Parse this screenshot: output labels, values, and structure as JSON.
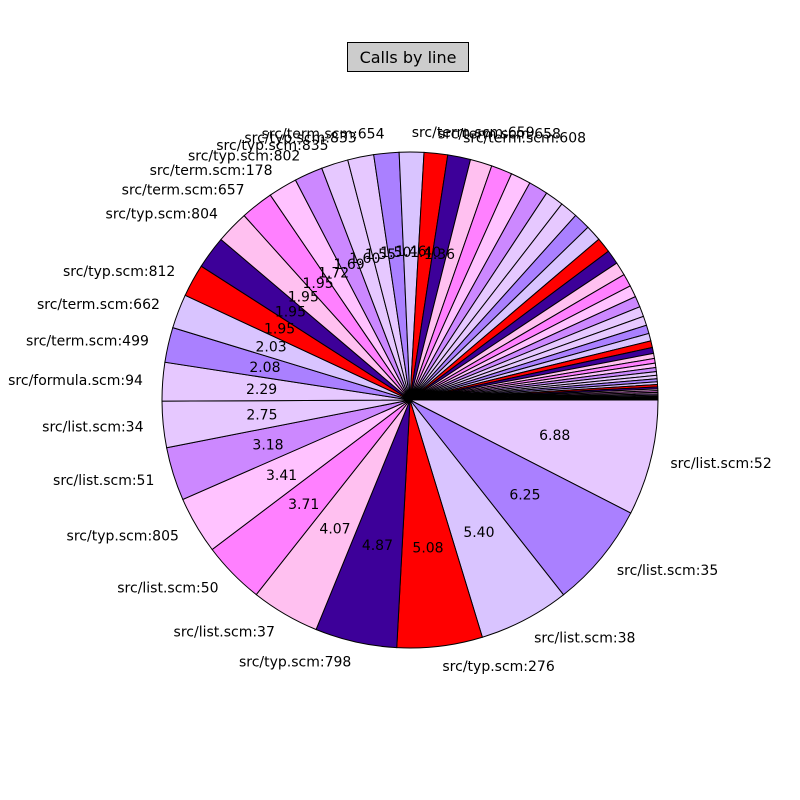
{
  "title": "Calls by line",
  "chart_data": {
    "type": "pie",
    "title": "Calls by line",
    "start_angle_deg": 0,
    "direction": "clockwise",
    "colors": [
      "#e6c8ff",
      "#aa80ff",
      "#d9c4ff",
      "#ff0000",
      "#3d0099",
      "#ffc0f0",
      "#ff80ff",
      "#ffc2ff",
      "#cc88ff",
      "#e6c8ff"
    ],
    "slices": [
      {
        "label": "src/list.scm:52",
        "value": 6.88,
        "value_label": "6.88"
      },
      {
        "label": "src/list.scm:35",
        "value": 6.25,
        "value_label": "6.25"
      },
      {
        "label": "src/list.scm:38",
        "value": 5.4,
        "value_label": "5.40"
      },
      {
        "label": "src/typ.scm:276",
        "value": 5.08,
        "value_label": "5.08"
      },
      {
        "label": "src/typ.scm:798",
        "value": 4.87,
        "value_label": "4.87"
      },
      {
        "label": "src/list.scm:37",
        "value": 4.07,
        "value_label": "4.07"
      },
      {
        "label": "src/list.scm:50",
        "value": 3.71,
        "value_label": "3.71"
      },
      {
        "label": "src/typ.scm:805",
        "value": 3.41,
        "value_label": "3.41"
      },
      {
        "label": "src/list.scm:51",
        "value": 3.18,
        "value_label": "3.18"
      },
      {
        "label": "src/list.scm:34",
        "value": 2.75,
        "value_label": "2.75"
      },
      {
        "label": "src/formula.scm:94",
        "value": 2.29,
        "value_label": "2.29"
      },
      {
        "label": "src/term.scm:499",
        "value": 2.08,
        "value_label": "2.08"
      },
      {
        "label": "src/term.scm:662",
        "value": 2.03,
        "value_label": "2.03"
      },
      {
        "label": "src/typ.scm:812",
        "value": 1.95,
        "value_label": "1.95"
      },
      {
        "label": "",
        "value": 1.95,
        "value_label": "1.95"
      },
      {
        "label": "src/typ.scm:804",
        "value": 1.95,
        "value_label": "1.95"
      },
      {
        "label": "src/term.scm:657",
        "value": 1.95,
        "value_label": "1.95"
      },
      {
        "label": "src/term.scm:178",
        "value": 1.72,
        "value_label": "1.72"
      },
      {
        "label": "src/typ.scm:802",
        "value": 1.69,
        "value_label": "1.69"
      },
      {
        "label": "src/typ.scm:835",
        "value": 1.6,
        "value_label": "1.60"
      },
      {
        "label": "src/typ.scm:833",
        "value": 1.55,
        "value_label": "1.55"
      },
      {
        "label": "src/term.scm:654",
        "value": 1.5,
        "value_label": "1.50"
      },
      {
        "label": "src/term.scm:659",
        "value": 1.46,
        "value_label": "1.46"
      },
      {
        "label": "src/term.scm:658",
        "value": 1.4,
        "value_label": "1.40"
      },
      {
        "label": "src/term.scm:608",
        "value": 1.36,
        "value_label": "1.36"
      },
      {
        "label": "",
        "value": 1.3,
        "value_label": ""
      },
      {
        "label": "",
        "value": 1.25,
        "value_label": ""
      },
      {
        "label": "",
        "value": 1.2,
        "value_label": ""
      },
      {
        "label": "",
        "value": 1.15,
        "value_label": ""
      },
      {
        "label": "",
        "value": 1.1,
        "value_label": ""
      },
      {
        "label": "",
        "value": 1.05,
        "value_label": ""
      },
      {
        "label": "",
        "value": 1.0,
        "value_label": ""
      },
      {
        "label": "",
        "value": 0.95,
        "value_label": ""
      },
      {
        "label": "",
        "value": 0.9,
        "value_label": ""
      },
      {
        "label": "",
        "value": 0.85,
        "value_label": ""
      },
      {
        "label": "",
        "value": 0.8,
        "value_label": ""
      },
      {
        "label": "",
        "value": 0.75,
        "value_label": ""
      },
      {
        "label": "",
        "value": 0.7,
        "value_label": ""
      },
      {
        "label": "",
        "value": 0.65,
        "value_label": ""
      },
      {
        "label": "",
        "value": 0.6,
        "value_label": ""
      },
      {
        "label": "",
        "value": 0.55,
        "value_label": ""
      },
      {
        "label": "",
        "value": 0.5,
        "value_label": ""
      },
      {
        "label": "",
        "value": 0.45,
        "value_label": ""
      },
      {
        "label": "",
        "value": 0.4,
        "value_label": ""
      },
      {
        "label": "",
        "value": 0.35,
        "value_label": ""
      },
      {
        "label": "",
        "value": 0.3,
        "value_label": ""
      },
      {
        "label": "",
        "value": 0.28,
        "value_label": ""
      },
      {
        "label": "",
        "value": 0.26,
        "value_label": ""
      },
      {
        "label": "",
        "value": 0.24,
        "value_label": ""
      },
      {
        "label": "",
        "value": 0.22,
        "value_label": ""
      },
      {
        "label": "",
        "value": 0.2,
        "value_label": ""
      },
      {
        "label": "",
        "value": 0.18,
        "value_label": ""
      },
      {
        "label": "",
        "value": 0.16,
        "value_label": ""
      },
      {
        "label": "",
        "value": 0.14,
        "value_label": ""
      },
      {
        "label": "",
        "value": 0.12,
        "value_label": ""
      },
      {
        "label": "",
        "value": 0.1,
        "value_label": ""
      },
      {
        "label": "",
        "value": 0.1,
        "value_label": ""
      },
      {
        "label": "",
        "value": 0.09,
        "value_label": ""
      },
      {
        "label": "",
        "value": 0.08,
        "value_label": ""
      },
      {
        "label": "",
        "value": 0.07,
        "value_label": ""
      },
      {
        "label": "",
        "value": 0.06,
        "value_label": ""
      },
      {
        "label": "",
        "value": 0.05,
        "value_label": ""
      },
      {
        "label": "",
        "value": 0.04,
        "value_label": ""
      },
      {
        "label": "",
        "value": 0.03,
        "value_label": ""
      },
      {
        "label": "",
        "value": 0.02,
        "value_label": ""
      },
      {
        "label": "",
        "value": 0.01,
        "value_label": ""
      }
    ]
  }
}
